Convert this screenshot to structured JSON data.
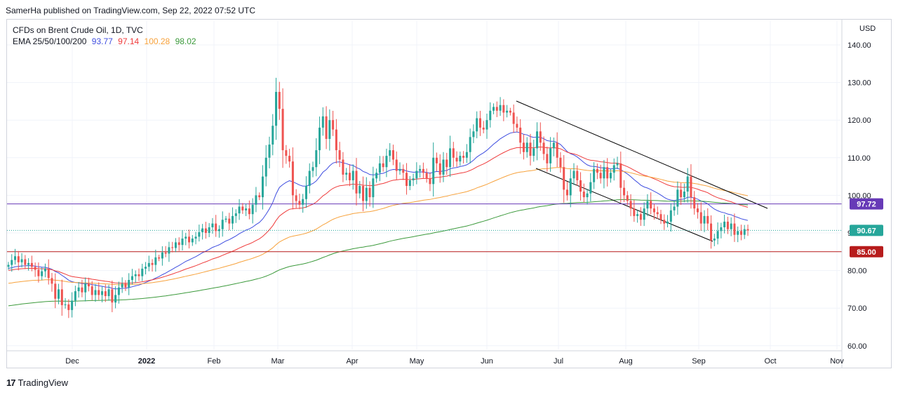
{
  "header": {
    "published": "SamerHa published on TradingView.com, Sep 22, 2022 07:52 UTC"
  },
  "legend": {
    "title": "CFDs on Brent Crude Oil, 1D, TVC",
    "ema_label": "EMA 25/50/100/200",
    "ema_values": [
      "93.77",
      "97.14",
      "100.28",
      "98.02"
    ]
  },
  "colors": {
    "up": "#26a69a",
    "down": "#ef5350",
    "ema25": "#3f4ee0",
    "ema50": "#ef3b3b",
    "ema100": "#f7a23c",
    "ema200": "#3c9a3c",
    "line_9772": "#673ab7",
    "line_8500": "#b71c1c",
    "price_9067": "#26a69a"
  },
  "footer": {
    "brand": "TradingView"
  },
  "chart_data": {
    "type": "candlestick",
    "title": "CFDs on Brent Crude Oil, 1D, TVC",
    "currency": "USD",
    "ylim": [
      58,
      147
    ],
    "y_ticks": [
      "140.00",
      "130.00",
      "120.00",
      "110.00",
      "100.00",
      "90.00",
      "80.00",
      "70.00",
      "60.00"
    ],
    "x_labels": [
      "Dec",
      "2022",
      "Feb",
      "Mar",
      "Apr",
      "May",
      "Jun",
      "Jul",
      "Aug",
      "Sep",
      "Oct",
      "Nov"
    ],
    "horizontal_levels": [
      {
        "value": 97.72,
        "label": "97.72",
        "color": "#673ab7"
      },
      {
        "value": 85.0,
        "label": "85.00",
        "color": "#b71c1c"
      }
    ],
    "last_price": {
      "value": 90.67,
      "label": "90.67"
    },
    "closes": [
      81.5,
      82.8,
      83.8,
      82.2,
      83.0,
      81.5,
      82.0,
      81.0,
      80.2,
      78.5,
      79.8,
      80.5,
      78.0,
      76.5,
      72.5,
      75.0,
      70.8,
      71.0,
      69.5,
      72.0,
      74.5,
      75.5,
      74.2,
      76.5,
      75.8,
      73.5,
      74.8,
      73.5,
      74.5,
      73.2,
      75.0,
      71.5,
      73.5,
      75.5,
      76.5,
      75.5,
      77.5,
      78.5,
      79.0,
      78.5,
      80.5,
      81.0,
      82.0,
      81.5,
      83.5,
      83.2,
      84.8,
      84.5,
      86.2,
      86.0,
      87.5,
      86.8,
      88.5,
      89.0,
      87.5,
      88.5,
      89.0,
      90.2,
      91.2,
      90.0,
      91.5,
      92.5,
      90.5,
      91.0,
      93.5,
      93.8,
      92.5,
      94.5,
      95.2,
      97.0,
      96.0,
      96.5,
      95.0,
      97.5,
      100.0,
      99.5,
      105.0,
      110.0,
      113.5,
      118.5,
      127.5,
      123.0,
      112.0,
      110.5,
      109.0,
      100.0,
      98.5,
      97.5,
      99.0,
      102.5,
      106.5,
      107.5,
      112.0,
      118.0,
      121.0,
      115.0,
      120.0,
      117.5,
      112.0,
      109.5,
      105.5,
      106.0,
      104.0,
      106.5,
      100.5,
      102.5,
      98.5,
      102.0,
      99.5,
      104.5,
      106.0,
      108.5,
      107.5,
      110.5,
      112.0,
      109.5,
      106.5,
      107.0,
      106.0,
      102.5,
      104.0,
      104.5,
      106.5,
      107.0,
      106.0,
      104.5,
      103.0,
      110.0,
      108.5,
      105.5,
      109.5,
      107.5,
      112.5,
      110.0,
      109.0,
      110.5,
      110.0,
      111.5,
      115.5,
      117.0,
      120.5,
      118.0,
      117.5,
      120.0,
      122.5,
      123.5,
      122.5,
      124.0,
      122.0,
      122.5,
      122.0,
      119.0,
      118.0,
      114.0,
      111.5,
      114.0,
      110.5,
      112.5,
      117.0,
      114.0,
      111.0,
      108.5,
      112.5,
      114.0,
      110.0,
      107.5,
      101.5,
      100.0,
      104.5,
      106.5,
      104.0,
      101.0,
      99.5,
      100.5,
      103.5,
      107.0,
      106.0,
      104.5,
      107.5,
      104.5,
      106.0,
      108.0,
      108.5,
      102.0,
      100.0,
      98.5,
      96.5,
      94.5,
      95.0,
      93.5,
      96.5,
      98.5,
      96.5,
      95.5,
      95.0,
      93.5,
      92.5,
      93.0,
      96.0,
      97.0,
      101.5,
      99.5,
      101.0,
      105.0,
      99.5,
      96.5,
      95.5,
      92.5,
      94.5,
      92.5,
      88.0,
      88.5,
      90.5,
      91.5,
      93.0,
      91.0,
      92.5,
      89.5,
      90.5,
      89.5,
      91.0,
      90.67
    ]
  }
}
